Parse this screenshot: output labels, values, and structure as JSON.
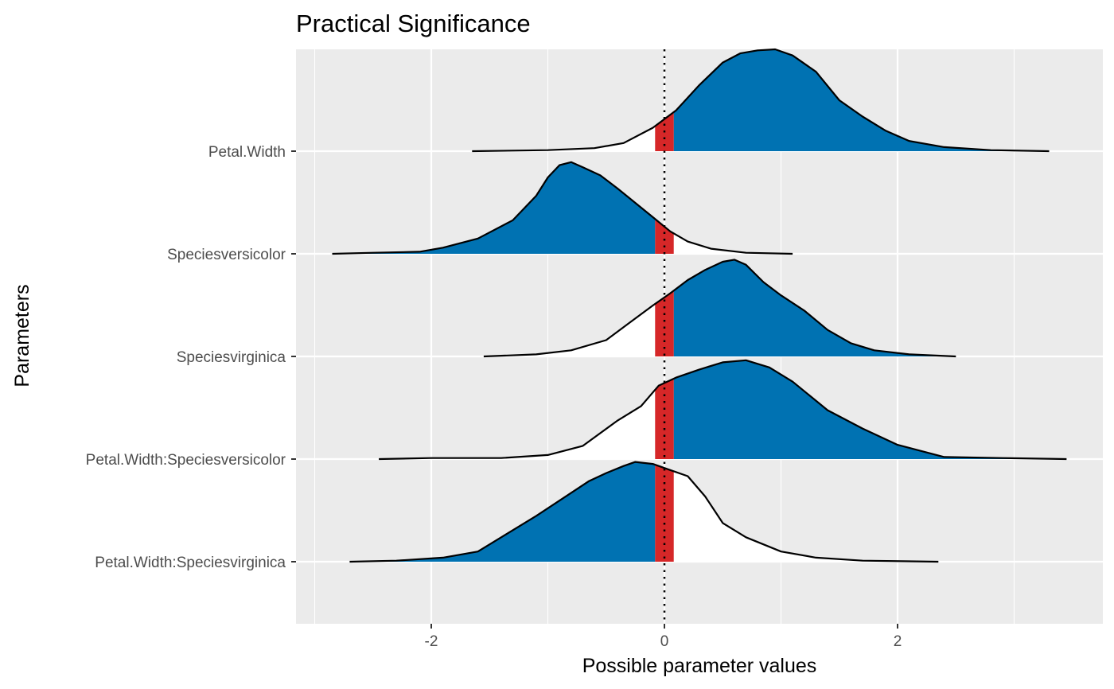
{
  "chart_data": {
    "type": "ridgeline",
    "title": "Practical Significance",
    "xlabel": "Possible parameter values",
    "ylabel": "Parameters",
    "xlim": [
      -3.0,
      3.75
    ],
    "xticks": [
      -2,
      0,
      2
    ],
    "xtick_labels": [
      "-2",
      "0",
      "2"
    ],
    "rope": [
      -0.08,
      0.08
    ],
    "reference_line": 0,
    "grid": true,
    "colors": {
      "panel": "#EBEBEB",
      "grid": "#FFFFFF",
      "outside_rope": "#0072B2",
      "inside_rope": "#D62728",
      "opposite_side": "#FFFFFF",
      "outline": "#000000"
    },
    "series": [
      {
        "name": "Petal.Width",
        "main_side": "positive",
        "density": [
          [
            -1.65,
            0.0
          ],
          [
            -1.0,
            0.01
          ],
          [
            -0.6,
            0.03
          ],
          [
            -0.35,
            0.08
          ],
          [
            -0.1,
            0.23
          ],
          [
            0.1,
            0.4
          ],
          [
            0.3,
            0.65
          ],
          [
            0.5,
            0.87
          ],
          [
            0.65,
            0.96
          ],
          [
            0.8,
            0.99
          ],
          [
            0.95,
            1.0
          ],
          [
            1.1,
            0.94
          ],
          [
            1.3,
            0.78
          ],
          [
            1.5,
            0.5
          ],
          [
            1.7,
            0.34
          ],
          [
            1.9,
            0.2
          ],
          [
            2.1,
            0.1
          ],
          [
            2.4,
            0.04
          ],
          [
            2.8,
            0.01
          ],
          [
            3.3,
            0.0
          ]
        ]
      },
      {
        "name": "Speciesversicolor",
        "main_side": "negative",
        "density": [
          [
            -2.85,
            0.0
          ],
          [
            -2.5,
            0.01
          ],
          [
            -2.1,
            0.02
          ],
          [
            -1.9,
            0.06
          ],
          [
            -1.6,
            0.15
          ],
          [
            -1.3,
            0.33
          ],
          [
            -1.1,
            0.57
          ],
          [
            -1.0,
            0.75
          ],
          [
            -0.9,
            0.87
          ],
          [
            -0.8,
            0.9
          ],
          [
            -0.7,
            0.85
          ],
          [
            -0.55,
            0.77
          ],
          [
            -0.4,
            0.64
          ],
          [
            -0.25,
            0.5
          ],
          [
            -0.1,
            0.36
          ],
          [
            0.05,
            0.22
          ],
          [
            0.2,
            0.12
          ],
          [
            0.4,
            0.05
          ],
          [
            0.7,
            0.01
          ],
          [
            1.1,
            0.0
          ]
        ]
      },
      {
        "name": "Speciesvirginica",
        "main_side": "positive",
        "density": [
          [
            -1.55,
            0.0
          ],
          [
            -1.1,
            0.02
          ],
          [
            -0.8,
            0.06
          ],
          [
            -0.5,
            0.16
          ],
          [
            -0.3,
            0.33
          ],
          [
            -0.1,
            0.5
          ],
          [
            0.05,
            0.62
          ],
          [
            0.2,
            0.75
          ],
          [
            0.35,
            0.85
          ],
          [
            0.5,
            0.93
          ],
          [
            0.6,
            0.95
          ],
          [
            0.7,
            0.9
          ],
          [
            0.85,
            0.73
          ],
          [
            1.0,
            0.6
          ],
          [
            1.2,
            0.45
          ],
          [
            1.4,
            0.26
          ],
          [
            1.6,
            0.13
          ],
          [
            1.8,
            0.06
          ],
          [
            2.1,
            0.02
          ],
          [
            2.5,
            0.0
          ]
        ]
      },
      {
        "name": "Petal.Width:Speciesversicolor",
        "main_side": "positive",
        "density": [
          [
            -2.45,
            0.0
          ],
          [
            -2.0,
            0.01
          ],
          [
            -1.4,
            0.01
          ],
          [
            -1.0,
            0.04
          ],
          [
            -0.7,
            0.13
          ],
          [
            -0.4,
            0.38
          ],
          [
            -0.2,
            0.52
          ],
          [
            -0.05,
            0.72
          ],
          [
            0.1,
            0.8
          ],
          [
            0.3,
            0.88
          ],
          [
            0.5,
            0.95
          ],
          [
            0.7,
            0.97
          ],
          [
            0.9,
            0.9
          ],
          [
            1.1,
            0.76
          ],
          [
            1.4,
            0.48
          ],
          [
            1.7,
            0.3
          ],
          [
            2.0,
            0.14
          ],
          [
            2.4,
            0.02
          ],
          [
            2.9,
            0.01
          ],
          [
            3.45,
            0.0
          ]
        ]
      },
      {
        "name": "Petal.Width:Speciesvirginica",
        "main_side": "negative",
        "density": [
          [
            -2.7,
            0.0
          ],
          [
            -2.3,
            0.01
          ],
          [
            -1.9,
            0.04
          ],
          [
            -1.6,
            0.1
          ],
          [
            -1.4,
            0.24
          ],
          [
            -1.1,
            0.45
          ],
          [
            -0.9,
            0.6
          ],
          [
            -0.65,
            0.79
          ],
          [
            -0.5,
            0.87
          ],
          [
            -0.35,
            0.94
          ],
          [
            -0.25,
            0.98
          ],
          [
            -0.1,
            0.96
          ],
          [
            0.05,
            0.9
          ],
          [
            0.2,
            0.84
          ],
          [
            0.35,
            0.64
          ],
          [
            0.5,
            0.38
          ],
          [
            0.7,
            0.24
          ],
          [
            1.0,
            0.1
          ],
          [
            1.3,
            0.04
          ],
          [
            1.7,
            0.01
          ],
          [
            2.35,
            0.0
          ]
        ]
      }
    ]
  }
}
